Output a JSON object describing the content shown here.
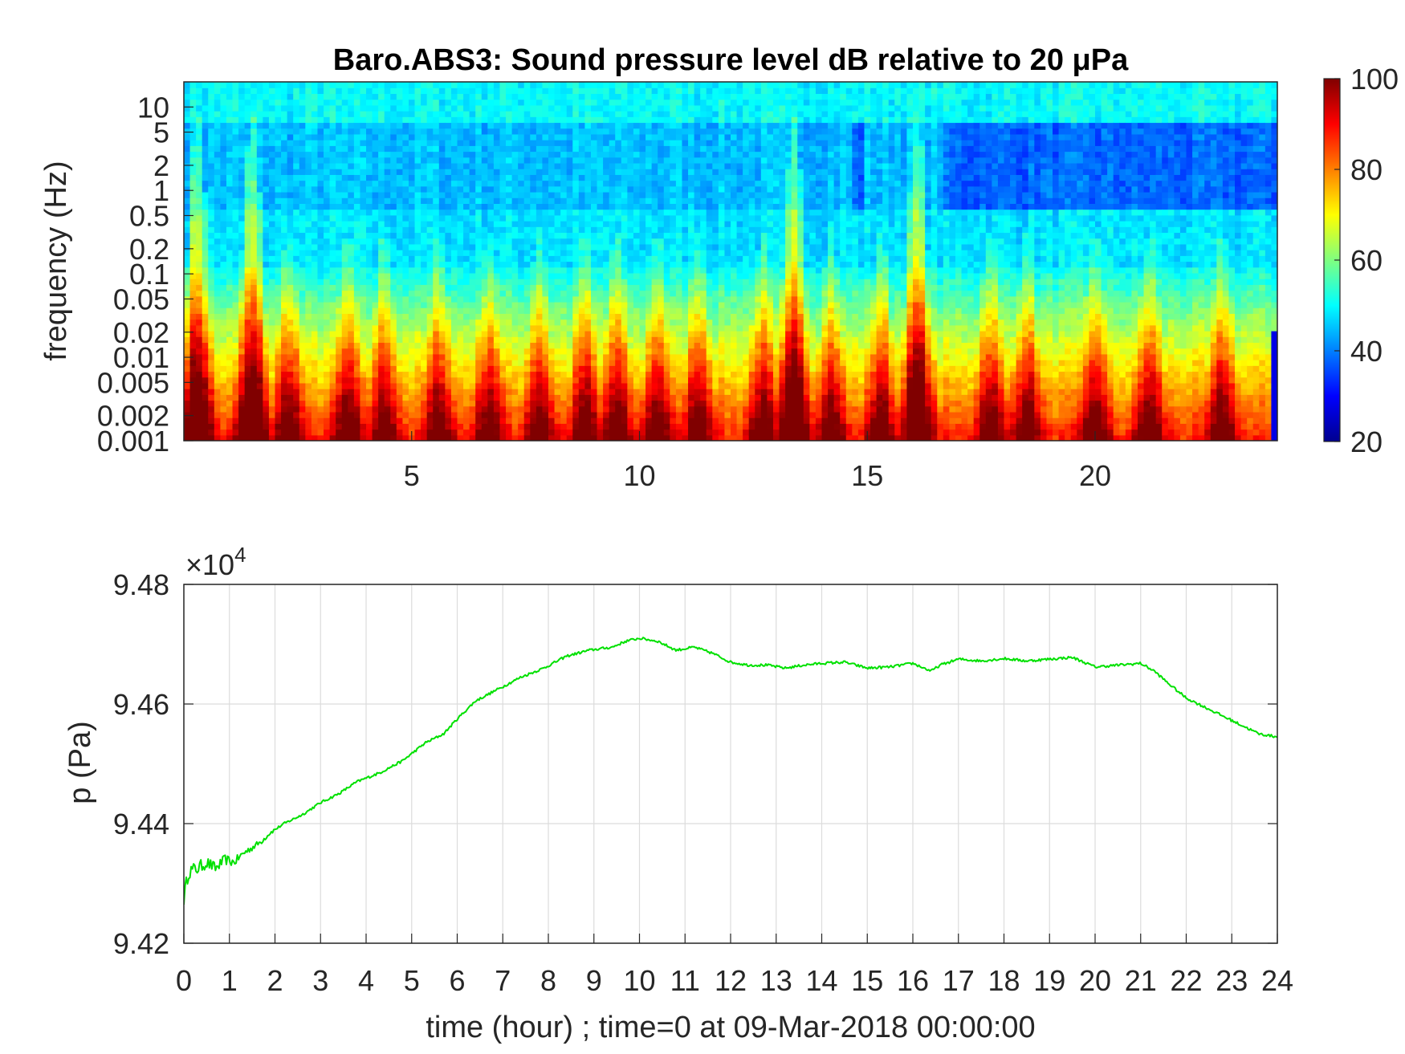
{
  "chart_data": [
    {
      "type": "heatmap",
      "title": "Baro.ABS3: Sound pressure level dB relative to 20 μPa",
      "xlabel": "",
      "ylabel": "frequency (Hz)",
      "x_ticks": [
        "5",
        "10",
        "15",
        "20"
      ],
      "y_ticks": [
        "10",
        "5",
        "2",
        "1",
        "0.5",
        "0.2",
        "0.1",
        "0.05",
        "0.02",
        "0.01",
        "0.005",
        "0.002",
        "0.001"
      ],
      "y_scale": "log",
      "xlim": [
        0,
        24
      ],
      "ylim": [
        0.001,
        20
      ],
      "colormap": "jet",
      "colorbar": {
        "ticks": [
          "100",
          "80",
          "60",
          "40",
          "20"
        ],
        "range": [
          20,
          100
        ]
      },
      "bursts_hour": [
        0.3,
        1.5,
        2.3,
        3.6,
        4.4,
        5.6,
        6.7,
        7.8,
        8.8,
        9.5,
        10.4,
        11.3,
        12.7,
        13.4,
        14.2,
        15.3,
        16.1,
        17.7,
        18.5,
        20.0,
        21.2,
        22.8
      ],
      "strong_burst_hours": [
        13.4,
        16.1,
        0.3,
        1.5
      ]
    },
    {
      "type": "line",
      "title": "",
      "xlabel": "time (hour) ; time=0 at 09-Mar-2018 00:00:00",
      "ylabel": "p (Pa)",
      "y_multiplier": "×10^4",
      "x_ticks": [
        "0",
        "1",
        "2",
        "3",
        "4",
        "5",
        "6",
        "7",
        "8",
        "9",
        "10",
        "11",
        "12",
        "13",
        "14",
        "15",
        "16",
        "17",
        "18",
        "19",
        "20",
        "21",
        "22",
        "23",
        "24"
      ],
      "y_ticks": [
        "9.48",
        "9.46",
        "9.44",
        "9.42"
      ],
      "xlim": [
        0,
        24
      ],
      "ylim": [
        9.42,
        9.48
      ],
      "grid": true,
      "series": [
        {
          "color": "#00e000",
          "x": [
            0,
            0.1,
            0.3,
            0.5,
            0.7,
            0.9,
            1.1,
            1.3,
            1.5,
            1.7,
            1.9,
            2.2,
            2.6,
            3.0,
            3.4,
            3.8,
            4.3,
            4.8,
            5.3,
            5.7,
            6.0,
            6.4,
            6.9,
            7.4,
            7.9,
            8.4,
            8.9,
            9.4,
            9.7,
            10.0,
            10.4,
            10.8,
            11.2,
            11.6,
            12.0,
            12.4,
            12.8,
            13.2,
            13.6,
            14.0,
            14.5,
            15.0,
            15.5,
            16.0,
            16.4,
            16.6,
            17.0,
            17.5,
            18.0,
            18.5,
            19.0,
            19.5,
            20.0,
            20.5,
            21.0,
            21.3,
            21.6,
            22.0,
            22.4,
            22.8,
            23.2,
            23.6,
            24.0
          ],
          "y": [
            9.4275,
            9.432,
            9.4325,
            9.4335,
            9.4325,
            9.434,
            9.4335,
            9.435,
            9.436,
            9.437,
            9.4385,
            9.44,
            9.4415,
            9.4435,
            9.445,
            9.447,
            9.4485,
            9.4505,
            9.4535,
            9.455,
            9.4575,
            9.4605,
            9.4625,
            9.4645,
            9.466,
            9.468,
            9.469,
            9.4695,
            9.4705,
            9.471,
            9.4705,
            9.469,
            9.4695,
            9.4685,
            9.467,
            9.4665,
            9.4665,
            9.466,
            9.4665,
            9.4668,
            9.467,
            9.466,
            9.4662,
            9.4668,
            9.4655,
            9.4665,
            9.4675,
            9.4672,
            9.4676,
            9.4672,
            9.4675,
            9.4678,
            9.4662,
            9.4665,
            9.4668,
            9.4655,
            9.4635,
            9.461,
            9.4595,
            9.458,
            9.4565,
            9.455,
            9.4545
          ]
        }
      ]
    }
  ]
}
